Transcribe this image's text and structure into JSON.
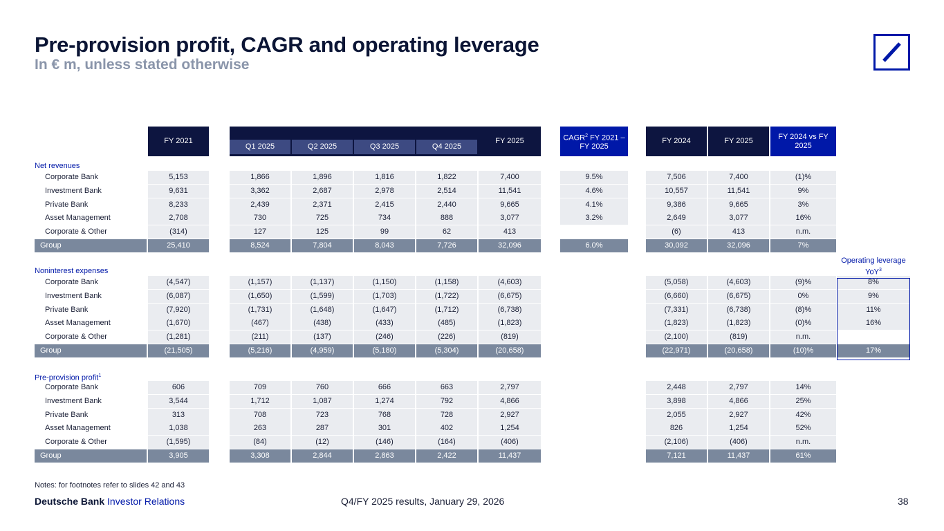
{
  "header": {
    "title": "Pre-provision profit, CAGR and operating leverage",
    "subtitle": "In € m, unless stated otherwise"
  },
  "columns": {
    "fy2021": "FY 2021",
    "q1": "Q1 2025",
    "q2": "Q2 2025",
    "q3": "Q3 2025",
    "q4": "Q4 2025",
    "fy2025": "FY 2025",
    "cagr_pre": "CAGR",
    "cagr_sup": "2",
    "cagr_post": " FY 2021 – FY 2025",
    "fy2024b": "FY 2024",
    "fy2025b": "FY 2025",
    "fy2024vs": "FY 2024 vs FY 2025",
    "oplev_pre": "Operating leverage YoY",
    "oplev_sup": "3"
  },
  "sections": [
    {
      "label": "Net revenues",
      "label_sup": "",
      "rows": [
        {
          "name": "Corporate Bank",
          "fy2021": "5,153",
          "q1": "1,866",
          "q2": "1,896",
          "q3": "1,816",
          "q4": "1,822",
          "fy2025": "7,400",
          "cagr": "9.5%",
          "fy2024b": "7,506",
          "fy2025b": "7,400",
          "vs": "(1)%",
          "oplev": ""
        },
        {
          "name": "Investment Bank",
          "fy2021": "9,631",
          "q1": "3,362",
          "q2": "2,687",
          "q3": "2,978",
          "q4": "2,514",
          "fy2025": "11,541",
          "cagr": "4.6%",
          "fy2024b": "10,557",
          "fy2025b": "11,541",
          "vs": "9%",
          "oplev": ""
        },
        {
          "name": "Private Bank",
          "fy2021": "8,233",
          "q1": "2,439",
          "q2": "2,371",
          "q3": "2,415",
          "q4": "2,440",
          "fy2025": "9,665",
          "cagr": "4.1%",
          "fy2024b": "9,386",
          "fy2025b": "9,665",
          "vs": "3%",
          "oplev": ""
        },
        {
          "name": "Asset Management",
          "fy2021": "2,708",
          "q1": "730",
          "q2": "725",
          "q3": "734",
          "q4": "888",
          "fy2025": "3,077",
          "cagr": "3.2%",
          "fy2024b": "2,649",
          "fy2025b": "3,077",
          "vs": "16%",
          "oplev": ""
        },
        {
          "name": "Corporate & Other",
          "fy2021": "(314)",
          "q1": "127",
          "q2": "125",
          "q3": "99",
          "q4": "62",
          "fy2025": "413",
          "cagr": "",
          "fy2024b": "(6)",
          "fy2025b": "413",
          "vs": "n.m.",
          "oplev": ""
        },
        {
          "name": "Group",
          "fy2021": "25,410",
          "q1": "8,524",
          "q2": "7,804",
          "q3": "8,043",
          "q4": "7,726",
          "fy2025": "32,096",
          "cagr": "6.0%",
          "fy2024b": "30,092",
          "fy2025b": "32,096",
          "vs": "7%",
          "oplev": ""
        }
      ]
    },
    {
      "label": "Noninterest expenses",
      "label_sup": "",
      "rows": [
        {
          "name": "Corporate Bank",
          "fy2021": "(4,547)",
          "q1": "(1,157)",
          "q2": "(1,137)",
          "q3": "(1,150)",
          "q4": "(1,158)",
          "fy2025": "(4,603)",
          "cagr": "",
          "fy2024b": "(5,058)",
          "fy2025b": "(4,603)",
          "vs": "(9)%",
          "oplev": "8%"
        },
        {
          "name": "Investment Bank",
          "fy2021": "(6,087)",
          "q1": "(1,650)",
          "q2": "(1,599)",
          "q3": "(1,703)",
          "q4": "(1,722)",
          "fy2025": "(6,675)",
          "cagr": "",
          "fy2024b": "(6,660)",
          "fy2025b": "(6,675)",
          "vs": "0%",
          "oplev": "9%"
        },
        {
          "name": "Private Bank",
          "fy2021": "(7,920)",
          "q1": "(1,731)",
          "q2": "(1,648)",
          "q3": "(1,647)",
          "q4": "(1,712)",
          "fy2025": "(6,738)",
          "cagr": "",
          "fy2024b": "(7,331)",
          "fy2025b": "(6,738)",
          "vs": "(8)%",
          "oplev": "11%"
        },
        {
          "name": "Asset Management",
          "fy2021": "(1,670)",
          "q1": "(467)",
          "q2": "(438)",
          "q3": "(433)",
          "q4": "(485)",
          "fy2025": "(1,823)",
          "cagr": "",
          "fy2024b": "(1,823)",
          "fy2025b": "(1,823)",
          "vs": "(0)%",
          "oplev": "16%"
        },
        {
          "name": "Corporate & Other",
          "fy2021": "(1,281)",
          "q1": "(211)",
          "q2": "(137)",
          "q3": "(246)",
          "q4": "(226)",
          "fy2025": "(819)",
          "cagr": "",
          "fy2024b": "(2,100)",
          "fy2025b": "(819)",
          "vs": "n.m.",
          "oplev": ""
        },
        {
          "name": "Group",
          "fy2021": "(21,505)",
          "q1": "(5,216)",
          "q2": "(4,959)",
          "q3": "(5,180)",
          "q4": "(5,304)",
          "fy2025": "(20,658)",
          "cagr": "",
          "fy2024b": "(22,971)",
          "fy2025b": "(20,658)",
          "vs": "(10)%",
          "oplev": "17%"
        }
      ]
    },
    {
      "label": "Pre-provision profit",
      "label_sup": "1",
      "rows": [
        {
          "name": "Corporate Bank",
          "fy2021": "606",
          "q1": "709",
          "q2": "760",
          "q3": "666",
          "q4": "663",
          "fy2025": "2,797",
          "cagr": "",
          "fy2024b": "2,448",
          "fy2025b": "2,797",
          "vs": "14%",
          "oplev": ""
        },
        {
          "name": "Investment Bank",
          "fy2021": "3,544",
          "q1": "1,712",
          "q2": "1,087",
          "q3": "1,274",
          "q4": "792",
          "fy2025": "4,866",
          "cagr": "",
          "fy2024b": "3,898",
          "fy2025b": "4,866",
          "vs": "25%",
          "oplev": ""
        },
        {
          "name": "Private Bank",
          "fy2021": "313",
          "q1": "708",
          "q2": "723",
          "q3": "768",
          "q4": "728",
          "fy2025": "2,927",
          "cagr": "",
          "fy2024b": "2,055",
          "fy2025b": "2,927",
          "vs": "42%",
          "oplev": ""
        },
        {
          "name": "Asset Management",
          "fy2021": "1,038",
          "q1": "263",
          "q2": "287",
          "q3": "301",
          "q4": "402",
          "fy2025": "1,254",
          "cagr": "",
          "fy2024b": "826",
          "fy2025b": "1,254",
          "vs": "52%",
          "oplev": ""
        },
        {
          "name": "Corporate & Other",
          "fy2021": "(1,595)",
          "q1": "(84)",
          "q2": "(12)",
          "q3": "(146)",
          "q4": "(164)",
          "fy2025": "(406)",
          "cagr": "",
          "fy2024b": "(2,106)",
          "fy2025b": "(406)",
          "vs": "n.m.",
          "oplev": ""
        },
        {
          "name": "Group",
          "fy2021": "3,905",
          "q1": "3,308",
          "q2": "2,844",
          "q3": "2,863",
          "q4": "2,422",
          "fy2025": "11,437",
          "cagr": "",
          "fy2024b": "7,121",
          "fy2025b": "11,437",
          "vs": "61%",
          "oplev": ""
        }
      ]
    }
  ],
  "footer": {
    "notes": "Notes: for footnotes refer to slides 42 and 43",
    "brand_bold": "Deutsche Bank",
    "brand_light": " Investor Relations",
    "center": "Q4/FY 2025 results, January 29, 2026",
    "page": "38"
  },
  "colors": {
    "navy": "#0d1540",
    "blue": "#0018a8",
    "row_bg": "#eaecf0",
    "group_bg": "#7a889d"
  }
}
